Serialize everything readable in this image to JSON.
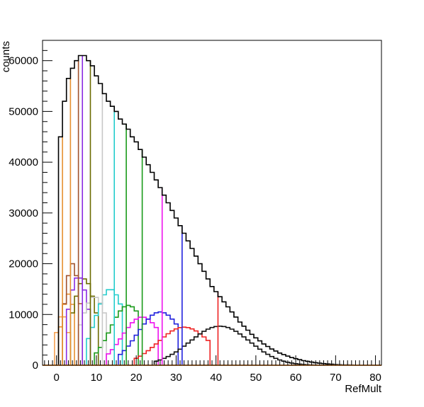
{
  "chart_data": {
    "type": "histogram",
    "xlabel": "RefMult",
    "ylabel": "counts",
    "xlim": [
      -3.5,
      81.5
    ],
    "ylim": [
      0,
      64000
    ],
    "bin_width": 1,
    "x_ticks": [
      0,
      10,
      20,
      30,
      40,
      50,
      60,
      70,
      80
    ],
    "y_ticks": [
      0,
      10000,
      20000,
      30000,
      40000,
      50000,
      60000
    ],
    "y_tick_labels": [
      "0",
      "10000",
      "20000",
      "30000",
      "40000",
      "50000",
      "60000"
    ],
    "grid": false,
    "legend": "none",
    "envelope": {
      "color": "#000000",
      "x": [
        1,
        2,
        3,
        4,
        5,
        6,
        7,
        8,
        9,
        10,
        11,
        12,
        13,
        14,
        15,
        16,
        17,
        18,
        19,
        20,
        21,
        22,
        23,
        24,
        25,
        26,
        27,
        28,
        29,
        30,
        31,
        32,
        33,
        34,
        35,
        36,
        37,
        38,
        39,
        40,
        41,
        42,
        43,
        44,
        45,
        46,
        47,
        48,
        49,
        50,
        51,
        52,
        53,
        54,
        55,
        56,
        57,
        58,
        59,
        60,
        61,
        62,
        63,
        64,
        65,
        66,
        67,
        68,
        69,
        70,
        71,
        72,
        73,
        74,
        75,
        76,
        77,
        78,
        79,
        80
      ],
      "y": [
        45000,
        52000,
        56500,
        58500,
        60000,
        61000,
        61000,
        60000,
        59000,
        57000,
        55500,
        53500,
        52000,
        51000,
        50000,
        48500,
        47500,
        46500,
        45000,
        44000,
        42500,
        41000,
        39500,
        38000,
        36500,
        35000,
        33500,
        32000,
        30500,
        29000,
        27500,
        26000,
        24500,
        23000,
        21500,
        20000,
        18500,
        17000,
        15500,
        14500,
        13500,
        12500,
        11500,
        10500,
        9500,
        8500,
        7700,
        6900,
        6100,
        5400,
        4800,
        4200,
        3700,
        3200,
        2800,
        2400,
        2100,
        1800,
        1500,
        1300,
        1100,
        900,
        750,
        620,
        500,
        400,
        320,
        250,
        190,
        140,
        100,
        75,
        55,
        40,
        28,
        20,
        14,
        9,
        6,
        4
      ]
    },
    "series": [
      {
        "color": "#f5a050",
        "lo": 0,
        "hi": 3,
        "peak_x": 1.5,
        "peak_y": 10000,
        "width": 1.6
      },
      {
        "color": "#e69030",
        "lo": 1,
        "hi": 4,
        "peak_x": 3.0,
        "peak_y": 14000,
        "width": 1.8
      },
      {
        "color": "#a0522d",
        "lo": 2,
        "hi": 6,
        "peak_x": 4.0,
        "peak_y": 20000,
        "width": 2.0
      },
      {
        "color": "#8a2be2",
        "lo": 3,
        "hi": 8,
        "peak_x": 5.5,
        "peak_y": 17500,
        "width": 2.6
      },
      {
        "color": "#6b6b00",
        "lo": 4,
        "hi": 10,
        "peak_x": 7.0,
        "peak_y": 17000,
        "width": 3.0
      },
      {
        "color": "#c8c8c8",
        "lo": 6,
        "hi": 12,
        "peak_x": 9.5,
        "peak_y": 13500,
        "width": 3.4
      },
      {
        "color": "#22cccc",
        "lo": 8,
        "hi": 16,
        "peak_x": 13.5,
        "peak_y": 15000,
        "width": 3.8
      },
      {
        "color": "#1a9a1a",
        "lo": 10,
        "hi": 20,
        "peak_x": 18.0,
        "peak_y": 11800,
        "width": 4.5
      },
      {
        "color": "#ee11ee",
        "lo": 13,
        "hi": 25,
        "peak_x": 21.5,
        "peak_y": 9500,
        "width": 5.0
      },
      {
        "color": "#2222dd",
        "lo": 16,
        "hi": 30,
        "peak_x": 26.0,
        "peak_y": 10500,
        "width": 5.6
      },
      {
        "color": "#ee2222",
        "lo": 20,
        "hi": 38,
        "peak_x": 32.0,
        "peak_y": 7500,
        "width": 6.5
      },
      {
        "color": "#111111",
        "lo": 25,
        "hi": 80,
        "peak_x": 41.0,
        "peak_y": 7700,
        "width": 7.5
      }
    ],
    "cut_lines": [
      {
        "x": 1,
        "color": "#e69030"
      },
      {
        "x": 3,
        "color": "#e69030"
      },
      {
        "x": 5,
        "color": "#a0522d"
      },
      {
        "x": 6,
        "color": "#8a2be2"
      },
      {
        "x": 8,
        "color": "#6b6b00"
      },
      {
        "x": 11,
        "color": "#c8c8c8"
      },
      {
        "x": 14,
        "color": "#22cccc"
      },
      {
        "x": 17,
        "color": "#1a9a1a"
      },
      {
        "x": 21,
        "color": "#1a9a1a"
      },
      {
        "x": 26,
        "color": "#ee11ee"
      },
      {
        "x": 31,
        "color": "#2222dd"
      },
      {
        "x": 40,
        "color": "#ee2222"
      }
    ]
  }
}
